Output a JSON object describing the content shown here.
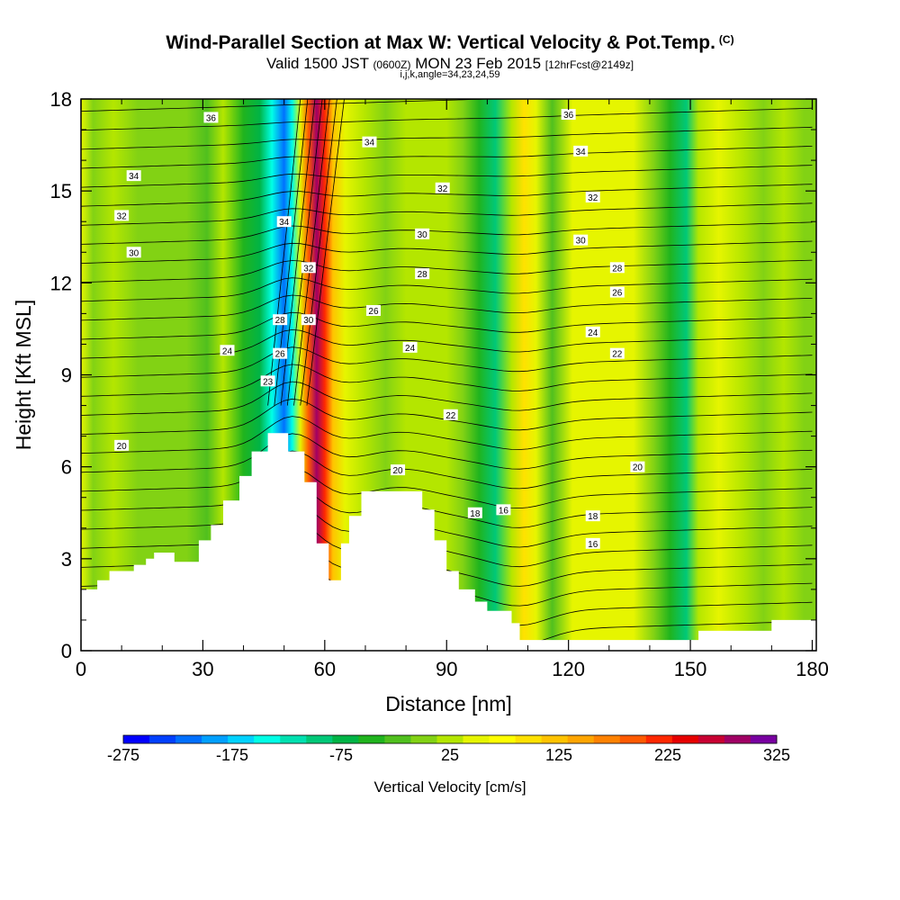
{
  "header": {
    "title": "Wind-Parallel Section at Max W: Vertical Velocity & Pot.Temp.",
    "copyright": "(C)",
    "valid_prefix": "Valid 1500 JST",
    "valid_utc": "(0600Z)",
    "valid_date": "MON 23 Feb 2015",
    "forecast": "[12hrFcst@2149z]",
    "ijk": "i,j,k,angle=34,23,24,59"
  },
  "chart_data": {
    "type": "heatmap",
    "xlabel": "Distance [nm]",
    "ylabel": "Height [Kft MSL]",
    "xlim": [
      0,
      181
    ],
    "ylim": [
      0,
      18
    ],
    "x_ticks": [
      "0",
      "30",
      "60",
      "90",
      "120",
      "150",
      "180"
    ],
    "y_ticks": [
      "0",
      "3",
      "6",
      "9",
      "12",
      "15",
      "18"
    ],
    "colorbar": {
      "label": "Vertical Velocity [cm/s]",
      "tick_labels": [
        "-275",
        "-175",
        "-75",
        "25",
        "125",
        "225",
        "325"
      ],
      "colors": [
        "#0000ff",
        "#0040ff",
        "#0070ff",
        "#00a0ff",
        "#00d2ff",
        "#00ffe6",
        "#00e0b0",
        "#00c878",
        "#00b446",
        "#20b41e",
        "#50c01e",
        "#82d214",
        "#b4e600",
        "#e6f500",
        "#ffff00",
        "#ffe100",
        "#ffc300",
        "#ffa500",
        "#ff8200",
        "#ff5a00",
        "#ff2800",
        "#e60000",
        "#c80032",
        "#a00064",
        "#7800a0"
      ]
    },
    "velocity_bands": [
      {
        "x": 0,
        "w": 0.5
      },
      {
        "x": 3,
        "w": 0.2
      },
      {
        "x": 8,
        "w": 0.3
      },
      {
        "x": 14,
        "w": 0.2
      },
      {
        "x": 20,
        "w": 0.1
      },
      {
        "x": 26,
        "w": 0.2
      },
      {
        "x": 31,
        "w": -0.2
      },
      {
        "x": 35,
        "w": 0.3
      },
      {
        "x": 40,
        "w": -0.3
      },
      {
        "x": 44,
        "w": -0.7
      },
      {
        "x": 47,
        "w": -1.4
      },
      {
        "x": 50,
        "w": -2.2
      },
      {
        "x": 52,
        "w": -1.5
      },
      {
        "x": 54,
        "w": 0.6
      },
      {
        "x": 56,
        "w": 2.0
      },
      {
        "x": 58,
        "w": 3.0
      },
      {
        "x": 60,
        "w": 2.4
      },
      {
        "x": 62,
        "w": 1.4
      },
      {
        "x": 65,
        "w": 0.5
      },
      {
        "x": 70,
        "w": 0.3
      },
      {
        "x": 75,
        "w": 0.1
      },
      {
        "x": 80,
        "w": 0.4
      },
      {
        "x": 85,
        "w": 0.3
      },
      {
        "x": 90,
        "w": 0.4
      },
      {
        "x": 94,
        "w": 0.2
      },
      {
        "x": 98,
        "w": -0.4
      },
      {
        "x": 102,
        "w": -0.9
      },
      {
        "x": 106,
        "w": 0.3
      },
      {
        "x": 109,
        "w": 1.1
      },
      {
        "x": 112,
        "w": 0.5
      },
      {
        "x": 116,
        "w": -0.2
      },
      {
        "x": 121,
        "w": 0.5
      },
      {
        "x": 126,
        "w": 0.6
      },
      {
        "x": 131,
        "w": 0.6
      },
      {
        "x": 136,
        "w": 0.5
      },
      {
        "x": 141,
        "w": 0.2
      },
      {
        "x": 145,
        "w": -0.5
      },
      {
        "x": 149,
        "w": -0.9
      },
      {
        "x": 152,
        "w": 0.3
      },
      {
        "x": 157,
        "w": 0.6
      },
      {
        "x": 163,
        "w": 0.3
      },
      {
        "x": 168,
        "w": 0.1
      },
      {
        "x": 173,
        "w": 0.3
      },
      {
        "x": 178,
        "w": 0.1
      },
      {
        "x": 181,
        "w": 0.0
      }
    ],
    "terrain": [
      [
        0,
        2.0
      ],
      [
        4,
        2.0
      ],
      [
        4,
        2.3
      ],
      [
        7,
        2.3
      ],
      [
        7,
        2.6
      ],
      [
        13,
        2.6
      ],
      [
        13,
        2.8
      ],
      [
        16,
        2.8
      ],
      [
        16,
        3.0
      ],
      [
        18,
        3.0
      ],
      [
        18,
        3.2
      ],
      [
        23,
        3.2
      ],
      [
        23,
        2.9
      ],
      [
        29,
        2.9
      ],
      [
        29,
        3.6
      ],
      [
        32,
        3.6
      ],
      [
        32,
        4.1
      ],
      [
        35,
        4.1
      ],
      [
        35,
        4.9
      ],
      [
        39,
        4.9
      ],
      [
        39,
        5.7
      ],
      [
        42,
        5.7
      ],
      [
        42,
        6.5
      ],
      [
        46,
        6.5
      ],
      [
        46,
        7.1
      ],
      [
        51,
        7.1
      ],
      [
        51,
        6.5
      ],
      [
        55,
        6.5
      ],
      [
        55,
        5.5
      ],
      [
        58,
        5.5
      ],
      [
        58,
        3.5
      ],
      [
        61,
        3.5
      ],
      [
        61,
        2.3
      ],
      [
        64,
        2.3
      ],
      [
        64,
        3.5
      ],
      [
        66,
        3.5
      ],
      [
        66,
        4.4
      ],
      [
        69,
        4.4
      ],
      [
        69,
        5.2
      ],
      [
        84,
        5.2
      ],
      [
        84,
        4.6
      ],
      [
        87,
        4.6
      ],
      [
        87,
        3.6
      ],
      [
        90,
        3.6
      ],
      [
        90,
        2.6
      ],
      [
        93,
        2.6
      ],
      [
        93,
        2.0
      ],
      [
        97,
        2.0
      ],
      [
        97,
        1.6
      ],
      [
        100,
        1.6
      ],
      [
        100,
        1.3
      ],
      [
        106,
        1.3
      ],
      [
        106,
        0.9
      ],
      [
        108,
        0.9
      ],
      [
        108,
        0.35
      ],
      [
        152,
        0.35
      ],
      [
        152,
        0.65
      ],
      [
        170,
        0.65
      ],
      [
        170,
        1.0
      ],
      [
        181,
        1.0
      ]
    ],
    "theta_contour_labels": [
      {
        "text": "36",
        "x": 32,
        "y": 17.4
      },
      {
        "text": "34",
        "x": 13,
        "y": 15.5
      },
      {
        "text": "32",
        "x": 10,
        "y": 14.2
      },
      {
        "text": "30",
        "x": 13,
        "y": 13.0
      },
      {
        "text": "24",
        "x": 36,
        "y": 9.8
      },
      {
        "text": "20",
        "x": 10,
        "y": 6.7
      },
      {
        "text": "34",
        "x": 50,
        "y": 14.0
      },
      {
        "text": "32",
        "x": 56,
        "y": 12.5
      },
      {
        "text": "30",
        "x": 56,
        "y": 10.8
      },
      {
        "text": "28",
        "x": 49,
        "y": 10.8
      },
      {
        "text": "26",
        "x": 49,
        "y": 9.7
      },
      {
        "text": "23",
        "x": 46,
        "y": 8.8
      },
      {
        "text": "34",
        "x": 71,
        "y": 16.6
      },
      {
        "text": "32",
        "x": 89,
        "y": 15.1
      },
      {
        "text": "30",
        "x": 84,
        "y": 13.6
      },
      {
        "text": "28",
        "x": 84,
        "y": 12.3
      },
      {
        "text": "26",
        "x": 72,
        "y": 11.1
      },
      {
        "text": "24",
        "x": 81,
        "y": 9.9
      },
      {
        "text": "22",
        "x": 91,
        "y": 7.7
      },
      {
        "text": "20",
        "x": 78,
        "y": 5.9
      },
      {
        "text": "18",
        "x": 97,
        "y": 4.5
      },
      {
        "text": "16",
        "x": 104,
        "y": 4.6
      },
      {
        "text": "36",
        "x": 120,
        "y": 17.5
      },
      {
        "text": "34",
        "x": 123,
        "y": 16.3
      },
      {
        "text": "32",
        "x": 126,
        "y": 14.8
      },
      {
        "text": "30",
        "x": 123,
        "y": 13.4
      },
      {
        "text": "28",
        "x": 132,
        "y": 12.5
      },
      {
        "text": "26",
        "x": 132,
        "y": 11.7
      },
      {
        "text": "24",
        "x": 126,
        "y": 10.4
      },
      {
        "text": "22",
        "x": 132,
        "y": 9.7
      },
      {
        "text": "20",
        "x": 137,
        "y": 6.0
      },
      {
        "text": "18",
        "x": 126,
        "y": 4.4
      },
      {
        "text": "16",
        "x": 126,
        "y": 3.5
      }
    ]
  }
}
